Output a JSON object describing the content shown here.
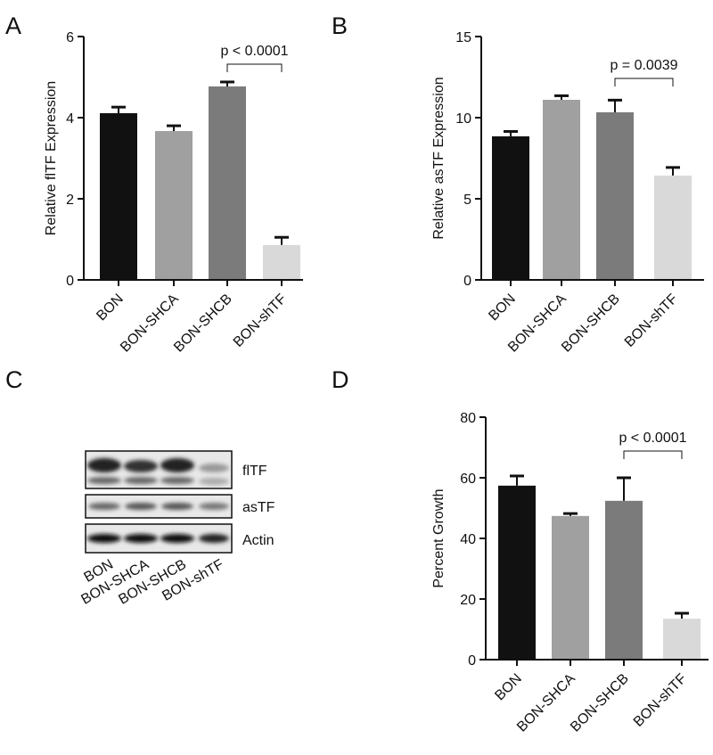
{
  "chart_data": [
    {
      "type": "bar",
      "panel_label": "A",
      "y_label": "Relative flTF Expression",
      "categories": [
        "BON",
        "BON-SHCA",
        "BON-SHCB",
        "BON-shTF"
      ],
      "values": [
        4.11,
        3.67,
        4.77,
        0.86
      ],
      "errors": [
        0.15,
        0.13,
        0.11,
        0.19
      ],
      "colors": [
        "#111111",
        "#a0a0a0",
        "#7b7b7b",
        "#d9d9d9"
      ],
      "ylim": [
        0,
        6
      ],
      "yticks": [
        0,
        2,
        4,
        6
      ],
      "annotation": "p < 0.0001"
    },
    {
      "type": "bar",
      "panel_label": "B",
      "y_label": "Relative asTF Expression",
      "categories": [
        "BON",
        "BON-SHCA",
        "BON-SHCB",
        "BON-shTF"
      ],
      "values": [
        8.85,
        11.1,
        10.33,
        6.43
      ],
      "errors": [
        0.3,
        0.25,
        0.75,
        0.5
      ],
      "colors": [
        "#111111",
        "#a0a0a0",
        "#7b7b7b",
        "#d9d9d9"
      ],
      "ylim": [
        0,
        15
      ],
      "yticks": [
        0,
        5,
        10,
        15
      ],
      "annotation": "p = 0.0039"
    },
    {
      "type": "bar",
      "panel_label": "D",
      "y_label": "Percent Growth",
      "categories": [
        "BON",
        "BON-SHCA",
        "BON-SHCB",
        "BON-shTF"
      ],
      "values": [
        57.4,
        47.4,
        52.4,
        13.5
      ],
      "errors": [
        3.2,
        0.8,
        7.6,
        1.8
      ],
      "colors": [
        "#111111",
        "#a0a0a0",
        "#7b7b7b",
        "#d9d9d9"
      ],
      "ylim": [
        0,
        80
      ],
      "yticks": [
        0,
        20,
        40,
        60,
        80
      ],
      "annotation": "p < 0.0001"
    }
  ],
  "blot": {
    "panel_label": "C",
    "bands": [
      "flTF",
      "asTF",
      "Actin"
    ],
    "lanes": [
      "BON",
      "BON-SHCA",
      "BON-SHCB",
      "BON-shTF"
    ]
  }
}
